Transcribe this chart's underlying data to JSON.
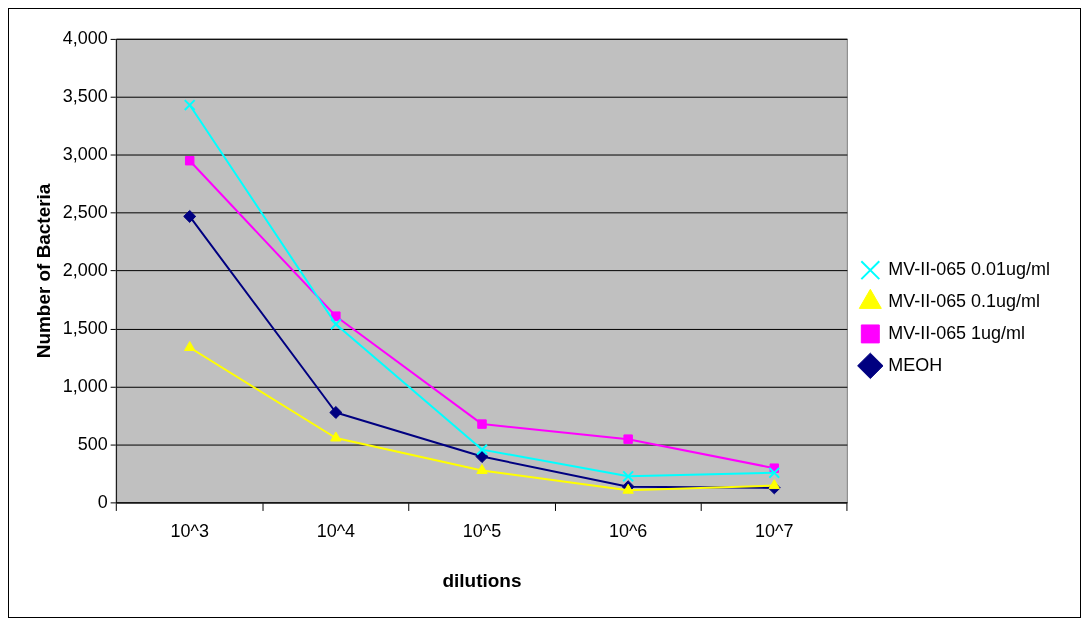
{
  "chart_data": {
    "type": "line",
    "xlabel": "dilutions",
    "ylabel": "Number of Bacteria",
    "categories": [
      "10^3",
      "10^4",
      "10^5",
      "10^6",
      "10^7"
    ],
    "series": [
      {
        "name": "MEOH",
        "color": "#000080",
        "marker": "diamond",
        "values": [
          2470,
          780,
          400,
          140,
          130
        ]
      },
      {
        "name": "MV-II-065 1ug/ml",
        "color": "#ff00ff",
        "marker": "square",
        "values": [
          2950,
          1610,
          680,
          550,
          300
        ]
      },
      {
        "name": "MV-II-065 0.1ug/ml",
        "color": "#ffff00",
        "marker": "triangle",
        "values": [
          1340,
          560,
          280,
          110,
          150
        ]
      },
      {
        "name": "MV-II-065 0.01ug/ml",
        "color": "#00ffff",
        "marker": "cross",
        "values": [
          3430,
          1540,
          460,
          230,
          260
        ]
      }
    ],
    "ylim": [
      0,
      4000
    ],
    "yticks": [
      {
        "value": 0,
        "label": "0"
      },
      {
        "value": 500,
        "label": "500"
      },
      {
        "value": 1000,
        "label": "1,000"
      },
      {
        "value": 1500,
        "label": "1,500"
      },
      {
        "value": 2000,
        "label": "2,000"
      },
      {
        "value": 2500,
        "label": "2,500"
      },
      {
        "value": 3000,
        "label": "3,000"
      },
      {
        "value": 3500,
        "label": "3,500"
      },
      {
        "value": 4000,
        "label": "4,000"
      }
    ],
    "grid": "y",
    "legend": "right",
    "line_style": "solid"
  }
}
